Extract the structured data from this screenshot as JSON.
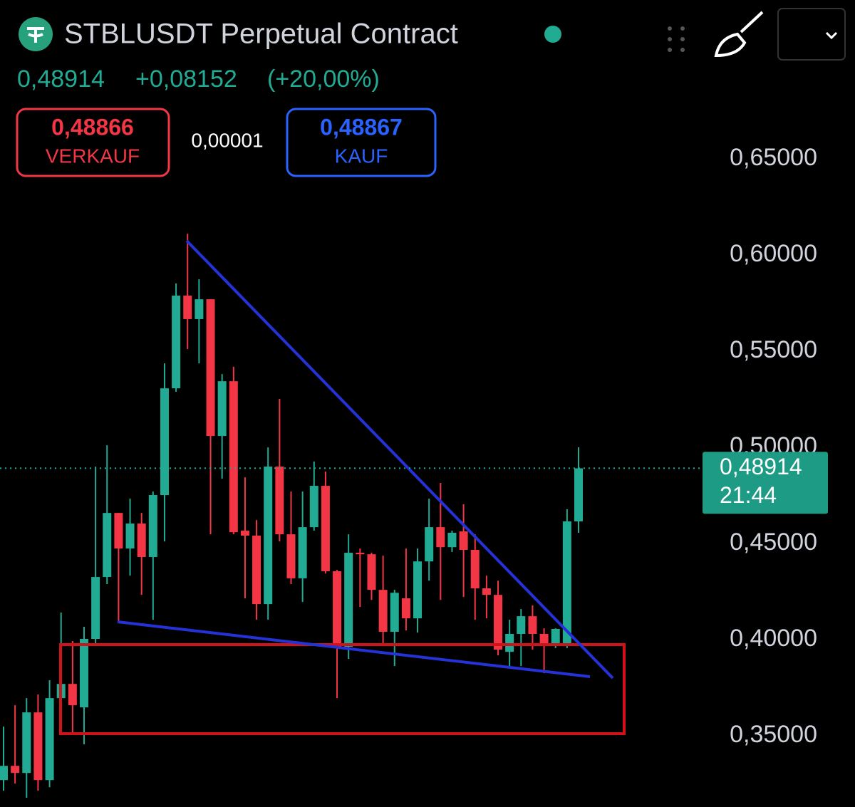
{
  "header": {
    "title": "STBLUSDT Perpetual Contract",
    "price": "0,48914",
    "change": "+0,08152",
    "change_pct": "(+20,00%)",
    "sell": {
      "price": "0,48866",
      "label": "VERKAUF"
    },
    "spread": "0,00001",
    "buy": {
      "price": "0,48867",
      "label": "KAUF"
    }
  },
  "chart_data": {
    "type": "candlestick",
    "up_color": "#22ab94",
    "down_color": "#f23645",
    "open": [
      0.327,
      0.3344,
      0.3307,
      0.3622,
      0.327,
      0.3696,
      0.377,
      0.3648,
      0.4004,
      0.4326,
      0.4659,
      0.4474,
      0.4604,
      0.443,
      0.4752,
      0.5307,
      0.5789,
      0.5667,
      0.577,
      0.5059,
      0.5344,
      0.4567,
      0.4541,
      0.4185,
      0.49,
      0.4548,
      0.4319,
      0.4585,
      0.48,
      0.4356,
      0.3963,
      0.4452,
      0.4444,
      0.4259,
      0.4041,
      0.4215,
      0.4111,
      0.4407,
      0.4585,
      0.4481,
      0.4563,
      0.4467,
      0.4267,
      0.4233,
      0.3937,
      0.403,
      0.4122,
      0.403,
      0.3974,
      0.3974,
      0.4615
    ],
    "high": [
      0.3548,
      0.3659,
      0.3696,
      0.3715,
      0.3789,
      0.4141,
      0.3993,
      0.4067,
      0.49,
      0.5011,
      0.4659,
      0.4733,
      0.4659,
      0.477,
      0.5437,
      0.5852,
      0.6111,
      0.5874,
      0.577,
      0.5381,
      0.5419,
      0.4844,
      0.4622,
      0.5,
      0.5252,
      0.477,
      0.477,
      0.4926,
      0.4874,
      0.4363,
      0.4548,
      0.4474,
      0.4452,
      0.4437,
      0.4259,
      0.4474,
      0.4474,
      0.4733,
      0.4815,
      0.4567,
      0.4704,
      0.4548,
      0.4333,
      0.4307,
      0.4104,
      0.4159,
      0.4178,
      0.4059,
      0.4059,
      0.4678,
      0.5
    ],
    "low": [
      0.3215,
      0.3252,
      0.3178,
      0.3215,
      0.3233,
      0.3511,
      0.3511,
      0.3456,
      0.3974,
      0.4289,
      0.4085,
      0.4333,
      0.4233,
      0.4104,
      0.4511,
      0.5289,
      0.5511,
      0.5437,
      0.4548,
      0.4837,
      0.4548,
      0.4215,
      0.4104,
      0.4104,
      0.4511,
      0.4289,
      0.4196,
      0.4567,
      0.4344,
      0.3696,
      0.39,
      0.417,
      0.4207,
      0.3974,
      0.3863,
      0.4048,
      0.4037,
      0.4307,
      0.4207,
      0.4456,
      0.4222,
      0.4104,
      0.4111,
      0.3919,
      0.3863,
      0.3863,
      0.3948,
      0.3826,
      0.3956,
      0.3956,
      0.4556
    ],
    "close": [
      0.3344,
      0.3307,
      0.3622,
      0.327,
      0.3696,
      0.377,
      0.3659,
      0.4004,
      0.4326,
      0.4659,
      0.4474,
      0.4604,
      0.443,
      0.4752,
      0.5307,
      0.5789,
      0.5667,
      0.577,
      0.5059,
      0.5344,
      0.4559,
      0.4541,
      0.4185,
      0.49,
      0.4548,
      0.4319,
      0.4585,
      0.48,
      0.4356,
      0.3963,
      0.4452,
      0.4444,
      0.4259,
      0.4041,
      0.4244,
      0.4111,
      0.4407,
      0.4585,
      0.4481,
      0.4556,
      0.4467,
      0.4267,
      0.4233,
      0.3948,
      0.403,
      0.4122,
      0.403,
      0.3974,
      0.4056,
      0.4615,
      0.4891
    ],
    "ylim": [
      0.313,
      0.7326
    ],
    "yticks": [
      {
        "value": 0.35,
        "label": "0,35000"
      },
      {
        "value": 0.4,
        "label": "0,40000"
      },
      {
        "value": 0.45,
        "label": "0,45000"
      },
      {
        "value": 0.5,
        "label": "0,50000"
      },
      {
        "value": 0.55,
        "label": "0,55000"
      },
      {
        "value": 0.6,
        "label": "0,60000"
      },
      {
        "value": 0.65,
        "label": "0,65000"
      }
    ],
    "last_price": {
      "value": 0.48914,
      "label": "0,48914"
    },
    "countdown": "21:44"
  }
}
